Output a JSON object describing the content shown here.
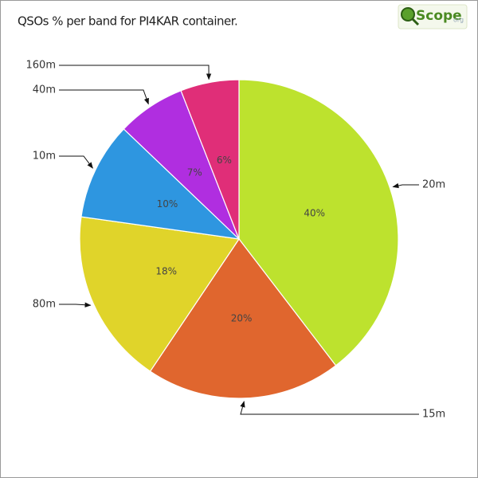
{
  "chart_data": {
    "type": "pie",
    "title": "QSOs % per band for PI4KAR container.",
    "categories": [
      "20m",
      "15m",
      "80m",
      "10m",
      "40m",
      "160m"
    ],
    "values": [
      40,
      20,
      18,
      10,
      7,
      6
    ],
    "value_labels": [
      "40%",
      "20%",
      "18%",
      "10%",
      "7%",
      "6%"
    ],
    "colors": [
      "#bde22e",
      "#e0662e",
      "#e0d42a",
      "#2e96e0",
      "#b02ee0",
      "#e02e78"
    ]
  },
  "logo": {
    "text": "Scope",
    "suffix": "org"
  }
}
